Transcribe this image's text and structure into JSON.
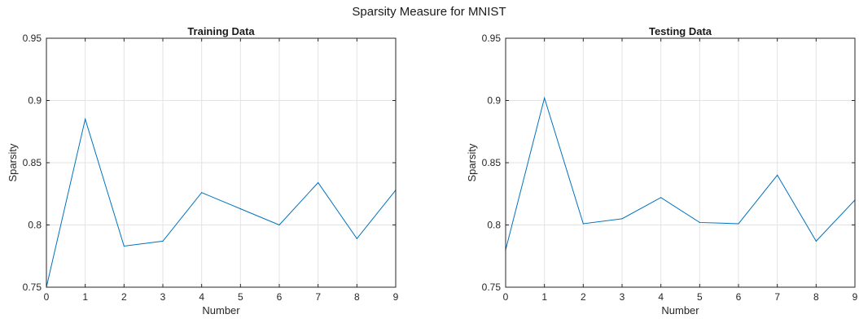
{
  "figure_title": "Sparsity Measure for MNIST",
  "chart_data": [
    {
      "type": "line",
      "title": "Training Data",
      "xlabel": "Number",
      "ylabel": "Sparsity",
      "xlim": [
        0,
        9
      ],
      "ylim": [
        0.75,
        0.95
      ],
      "x_ticks": [
        0,
        1,
        2,
        3,
        4,
        5,
        6,
        7,
        8,
        9
      ],
      "y_ticks": [
        0.75,
        0.8,
        0.85,
        0.9,
        0.95
      ],
      "grid": true,
      "color": "#0072bd",
      "x": [
        0,
        1,
        2,
        3,
        4,
        5,
        6,
        7,
        8,
        9
      ],
      "y": [
        0.75,
        0.885,
        0.783,
        0.787,
        0.826,
        0.813,
        0.8,
        0.834,
        0.789,
        0.828
      ]
    },
    {
      "type": "line",
      "title": "Testing Data",
      "xlabel": "Number",
      "ylabel": "Sparsity",
      "xlim": [
        0,
        9
      ],
      "ylim": [
        0.75,
        0.95
      ],
      "x_ticks": [
        0,
        1,
        2,
        3,
        4,
        5,
        6,
        7,
        8,
        9
      ],
      "y_ticks": [
        0.75,
        0.8,
        0.85,
        0.9,
        0.95
      ],
      "grid": true,
      "color": "#0072bd",
      "x": [
        0,
        1,
        2,
        3,
        4,
        5,
        6,
        7,
        8,
        9
      ],
      "y": [
        0.78,
        0.902,
        0.801,
        0.805,
        0.822,
        0.802,
        0.801,
        0.84,
        0.787,
        0.82
      ]
    }
  ]
}
